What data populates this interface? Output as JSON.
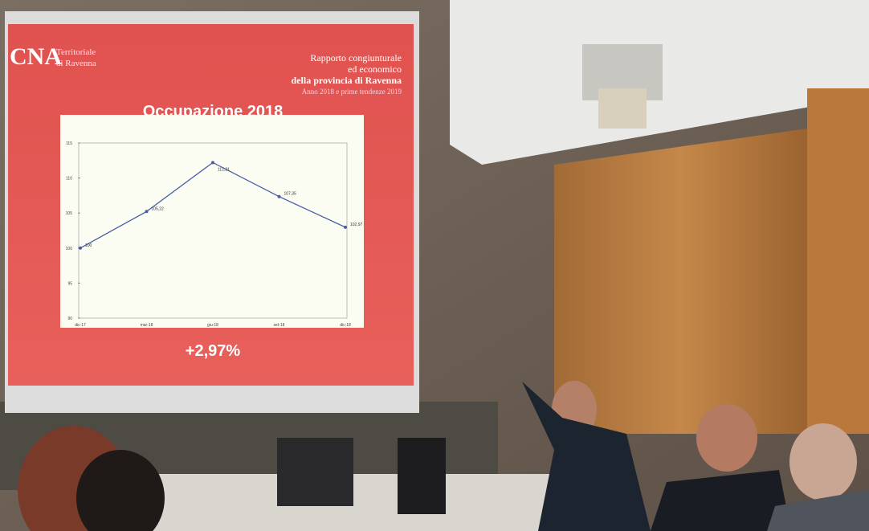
{
  "slide": {
    "logo": "CNA",
    "org_lines": [
      "Territoriale",
      "di Ravenna"
    ],
    "report_lines": [
      "Rapporto congiunturale",
      "ed economico",
      "della provincia di Ravenna",
      "Anno 2018 e prime tendenze 2019"
    ],
    "highlight": "+2,97%"
  },
  "chart_data": {
    "type": "line",
    "title": "Occupazione 2018",
    "categories": [
      "dic-17",
      "mar-18",
      "giu-18",
      "set-18",
      "dic-18"
    ],
    "series": [
      {
        "color": "#4a5ea8",
        "values": [
          100,
          105.22,
          112.21,
          107.35,
          102.97
        ],
        "value_labels": [
          "100",
          "105,22",
          "112,21",
          "107,35",
          "102,97"
        ]
      }
    ],
    "ylim": [
      90,
      115
    ],
    "yticks": [
      90,
      95,
      100,
      105,
      110,
      115
    ],
    "grid": false
  }
}
